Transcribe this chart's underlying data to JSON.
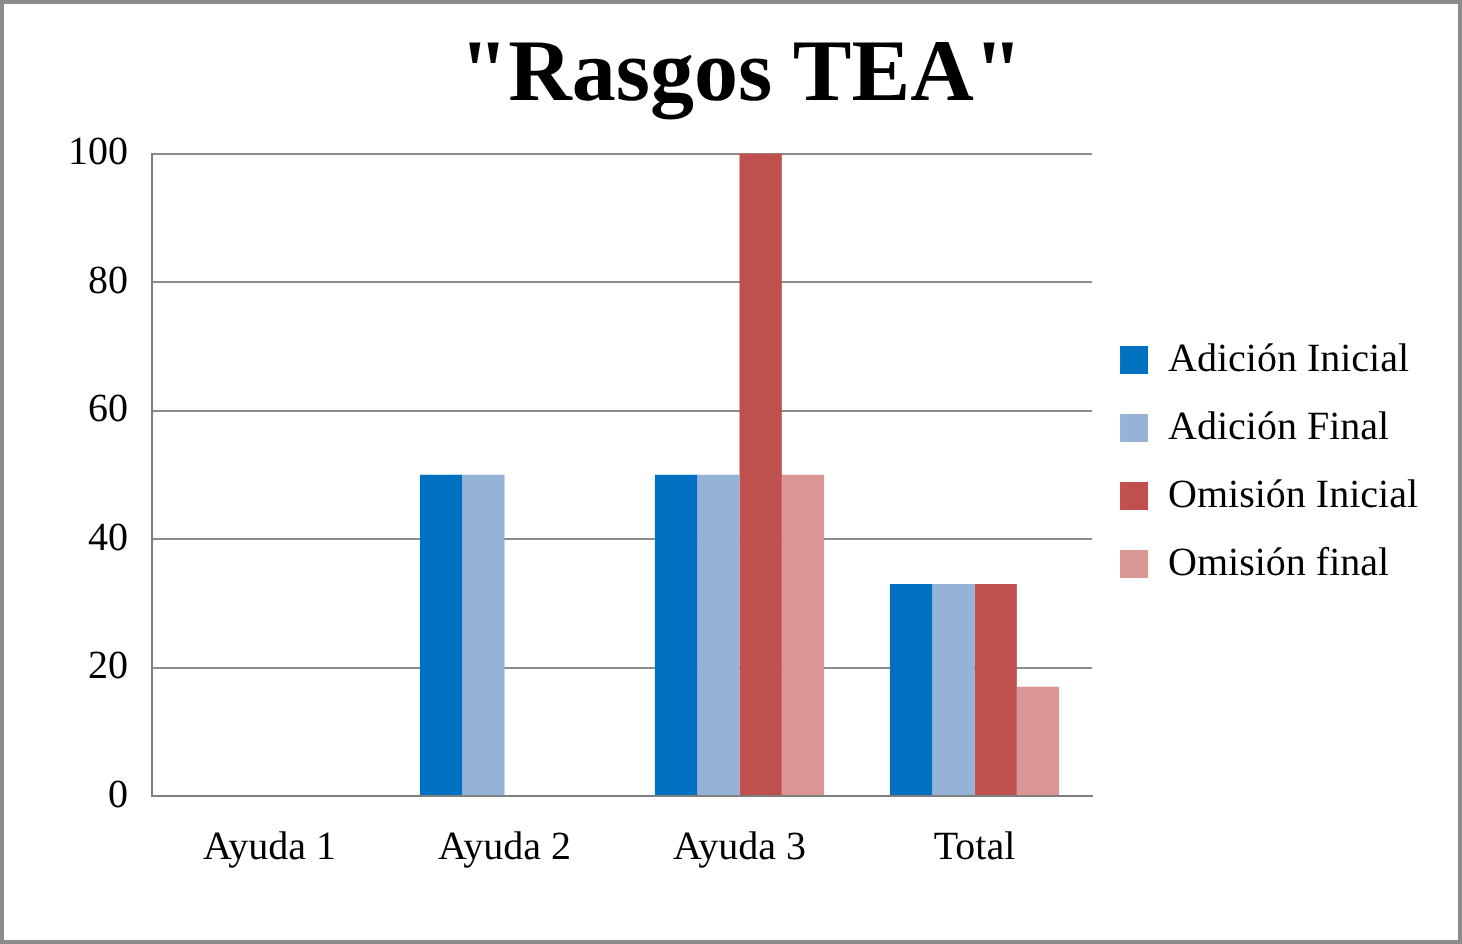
{
  "chart_data": {
    "type": "bar",
    "title": "\"Rasgos TEA\"",
    "categories": [
      "Ayuda 1",
      "Ayuda 2",
      "Ayuda 3",
      "Total"
    ],
    "series": [
      {
        "name": "Adición Inicial",
        "color": "#0070c0",
        "values": [
          0,
          50,
          50,
          33
        ]
      },
      {
        "name": "Adición Final",
        "color": "#95b3d7",
        "values": [
          0,
          50,
          50,
          33
        ]
      },
      {
        "name": "Omisión Inicial",
        "color": "#c0504d",
        "values": [
          0,
          0,
          100,
          33
        ]
      },
      {
        "name": "Omisión final",
        "color": "#da9694",
        "values": [
          0,
          0,
          50,
          17
        ]
      }
    ],
    "ylim": [
      0,
      100
    ],
    "yticks": [
      0,
      20,
      40,
      60,
      80,
      100
    ],
    "grid": "y",
    "legend": "right"
  }
}
